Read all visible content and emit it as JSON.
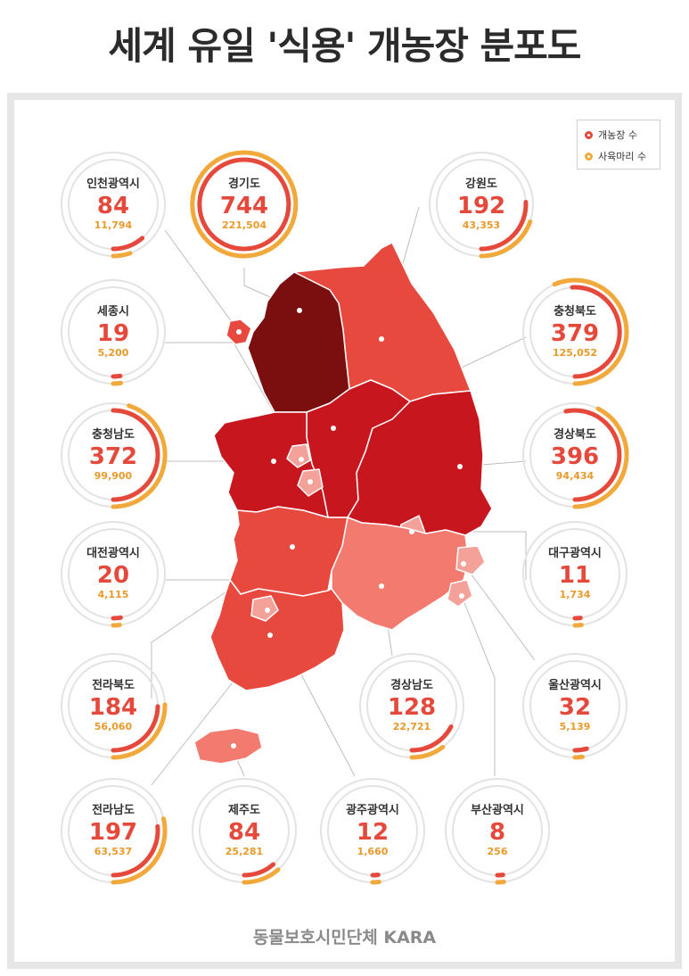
{
  "title": "세계 유일 '식용' 개농장 분포도",
  "legend": {
    "farms_label": "개농장 수",
    "animals_label": "사육마리 수",
    "farms_color": "#e5493b",
    "animals_color": "#f2a93b"
  },
  "regions": [
    {
      "id": "incheon",
      "name": "인천광역시",
      "farms": "84",
      "animals": "11,794"
    },
    {
      "id": "gyeonggi",
      "name": "경기도",
      "farms": "744",
      "animals": "221,504"
    },
    {
      "id": "gangwon",
      "name": "강원도",
      "farms": "192",
      "animals": "43,353"
    },
    {
      "id": "sejong",
      "name": "세종시",
      "farms": "19",
      "animals": "5,200"
    },
    {
      "id": "chungbuk",
      "name": "충청북도",
      "farms": "379",
      "animals": "125,052"
    },
    {
      "id": "chungnam",
      "name": "충청남도",
      "farms": "372",
      "animals": "99,900"
    },
    {
      "id": "gyeongbuk",
      "name": "경상북도",
      "farms": "396",
      "animals": "94,434"
    },
    {
      "id": "daejeon",
      "name": "대전광역시",
      "farms": "20",
      "animals": "4,115"
    },
    {
      "id": "daegu",
      "name": "대구광역시",
      "farms": "11",
      "animals": "1,734"
    },
    {
      "id": "jeonbuk",
      "name": "전라북도",
      "farms": "184",
      "animals": "56,060"
    },
    {
      "id": "gyeongnam",
      "name": "경상남도",
      "farms": "128",
      "animals": "22,721"
    },
    {
      "id": "ulsan",
      "name": "울산광역시",
      "farms": "32",
      "animals": "5,139"
    },
    {
      "id": "jeonnam",
      "name": "전라남도",
      "farms": "197",
      "animals": "63,537"
    },
    {
      "id": "jeju",
      "name": "제주도",
      "farms": "84",
      "animals": "25,281"
    },
    {
      "id": "gwangju",
      "name": "광주광역시",
      "farms": "12",
      "animals": "1,660"
    },
    {
      "id": "busan",
      "name": "부산광역시",
      "farms": "8",
      "animals": "256"
    }
  ],
  "footer": "동물보호시민단체 KARA"
}
